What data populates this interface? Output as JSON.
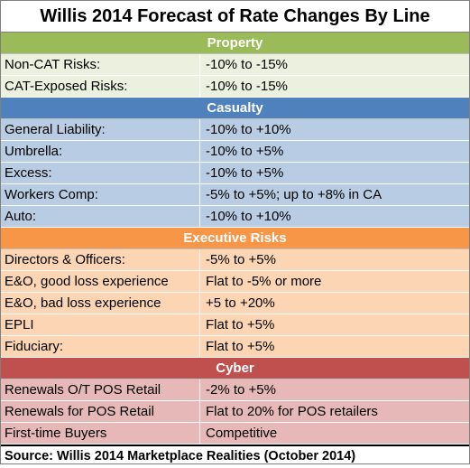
{
  "title": "Willis 2014 Forecast of Rate Changes By Line",
  "sections": [
    {
      "header": "Property",
      "colors": {
        "header": "#9bbb59",
        "row": "#ebf1de"
      },
      "rows": [
        {
          "label": "Non-CAT Risks:",
          "value": "-10% to -15%"
        },
        {
          "label": "CAT-Exposed Risks:",
          "value": "-10% to -15%"
        }
      ]
    },
    {
      "header": "Casualty",
      "colors": {
        "header": "#4f81bd",
        "row": "#b8cce4"
      },
      "rows": [
        {
          "label": "General Liability:",
          "value": "-10% to +10%"
        },
        {
          "label": "Umbrella:",
          "value": "-10% to +5%"
        },
        {
          "label": "Excess:",
          "value": "-10% to +5%"
        },
        {
          "label": "Workers Comp:",
          "value": "-5% to +5%; up to +8% in CA"
        },
        {
          "label": "Auto:",
          "value": "-10% to +10%"
        }
      ]
    },
    {
      "header": "Executive Risks",
      "colors": {
        "header": "#f79646",
        "row": "#fcd5b4"
      },
      "rows": [
        {
          "label": "Directors & Officers:",
          "value": "-5% to +5%"
        },
        {
          "label": "E&O, good loss experience",
          "value": "Flat to -5% or more"
        },
        {
          "label": "E&O, bad loss experience",
          "value": " +5 to +20%"
        },
        {
          "label": "EPLI",
          "value": "Flat to +5%"
        },
        {
          "label": "Fiduciary:",
          "value": "Flat to +5%"
        }
      ]
    },
    {
      "header": "Cyber",
      "colors": {
        "header": "#c0504d",
        "row": "#e6b8b7"
      },
      "rows": [
        {
          "label": "Renewals O/T POS Retail",
          "value": "-2% to +5%"
        },
        {
          "label": "Renewals for POS Retail",
          "value": " Flat to 20% for POS retailers"
        },
        {
          "label": "First-time Buyers",
          "value": "Competitive"
        }
      ]
    }
  ],
  "source": "Source: Willis 2014 Marketplace Realities (October 2014)"
}
